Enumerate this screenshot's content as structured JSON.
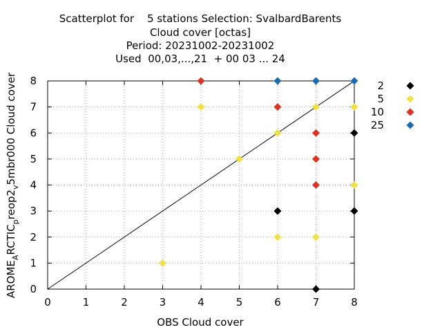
{
  "chart_data": {
    "type": "scatter",
    "title_lines": [
      "Scatterplot for    5 stations Selection: SvalbardBarents",
      "Cloud cover [octas]",
      "Period: 20231002-20231002",
      "Used  00,03,...,21  + 00 03 ... 24"
    ],
    "xlabel": "OBS Cloud cover",
    "ylabel": {
      "parts": [
        "AROME",
        "A",
        "RCTIC",
        "p",
        "reop2",
        "v",
        "5mbr000 Cloud cover"
      ]
    },
    "xlim": [
      0,
      8
    ],
    "ylim": [
      0,
      8
    ],
    "xticks": [
      "0",
      "1",
      "2",
      "3",
      "4",
      "5",
      "6",
      "7",
      "8"
    ],
    "yticks": [
      "0",
      "1",
      "2",
      "3",
      "4",
      "5",
      "6",
      "7",
      "8"
    ],
    "grid": true,
    "diagonal": [
      [
        0,
        0
      ],
      [
        8,
        8
      ]
    ],
    "legend_position": "outside-right",
    "series": [
      {
        "name": "2",
        "color": "#000000",
        "points": [
          [
            6,
            3
          ],
          [
            7,
            0
          ],
          [
            8,
            6
          ],
          [
            8,
            3
          ]
        ]
      },
      {
        "name": "5",
        "color": "#f0e040",
        "points": [
          [
            3,
            1
          ],
          [
            4,
            7
          ],
          [
            5,
            5
          ],
          [
            6,
            6
          ],
          [
            6,
            2
          ],
          [
            7,
            7
          ],
          [
            7,
            2
          ],
          [
            8,
            7
          ],
          [
            8,
            4
          ]
        ]
      },
      {
        "name": "10",
        "color": "#e03020",
        "points": [
          [
            4,
            8
          ],
          [
            6,
            7
          ],
          [
            7,
            6
          ],
          [
            7,
            5
          ],
          [
            7,
            4
          ]
        ]
      },
      {
        "name": "25",
        "color": "#1a6cb0",
        "points": [
          [
            6,
            8
          ],
          [
            7,
            8
          ],
          [
            8,
            8
          ]
        ]
      }
    ]
  }
}
